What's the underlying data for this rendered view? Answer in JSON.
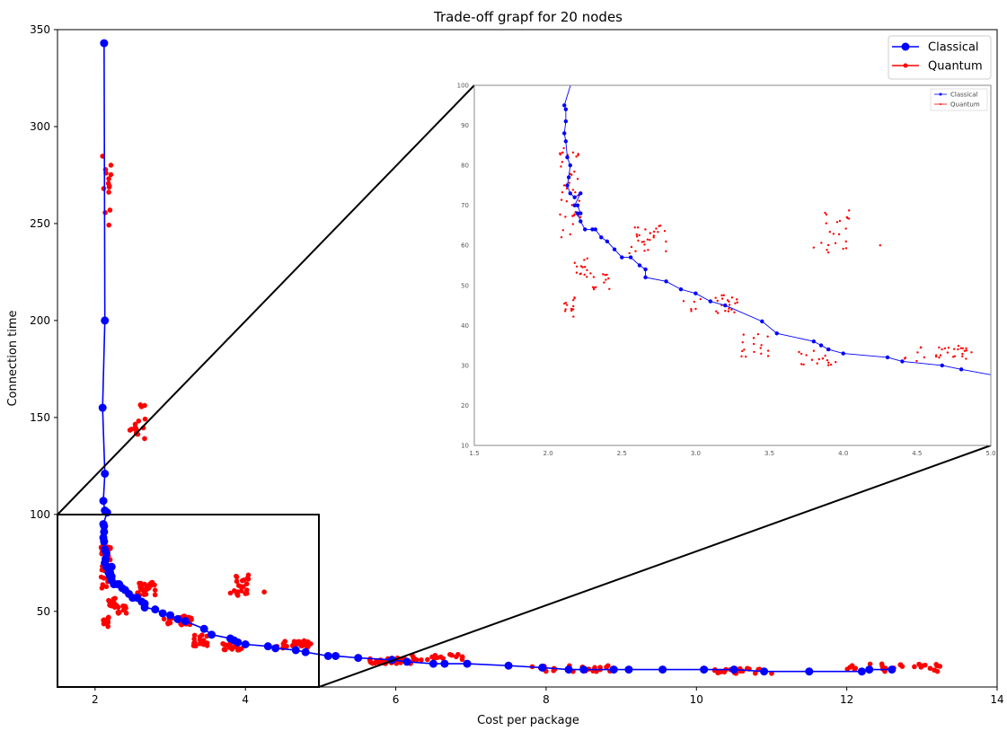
{
  "chart_data": {
    "type": "scatter",
    "title": "Trade-off grapf for 20 nodes",
    "xlabel": "Cost per package",
    "ylabel": "Connection time",
    "xlim": [
      1.5,
      14
    ],
    "ylim": [
      11,
      350
    ],
    "xticks": [
      2,
      4,
      6,
      8,
      10,
      12,
      14
    ],
    "yticks": [
      50,
      100,
      150,
      200,
      250,
      300,
      350
    ],
    "legend_position": "top-right",
    "colors": {
      "classical": "#0000ff",
      "quantum": "#ff0000",
      "zoom_box": "#000000"
    },
    "series": [
      {
        "name": "Classical",
        "style": "line-with-markers",
        "points": [
          [
            2.12,
            343
          ],
          [
            2.13,
            200
          ],
          [
            2.1,
            155
          ],
          [
            2.13,
            121
          ],
          [
            2.11,
            107
          ],
          [
            2.13,
            102
          ],
          [
            2.16,
            101
          ],
          [
            2.11,
            95
          ],
          [
            2.12,
            94
          ],
          [
            2.12,
            91
          ],
          [
            2.11,
            88
          ],
          [
            2.12,
            86
          ],
          [
            2.13,
            82
          ],
          [
            2.15,
            80
          ],
          [
            2.14,
            77
          ],
          [
            2.13,
            75
          ],
          [
            2.15,
            73
          ],
          [
            2.18,
            72
          ],
          [
            2.22,
            73
          ],
          [
            2.18,
            70
          ],
          [
            2.2,
            70
          ],
          [
            2.22,
            68
          ],
          [
            2.2,
            68
          ],
          [
            2.22,
            66
          ],
          [
            2.25,
            64
          ],
          [
            2.3,
            64
          ],
          [
            2.32,
            64
          ],
          [
            2.36,
            62
          ],
          [
            2.4,
            61
          ],
          [
            2.45,
            59
          ],
          [
            2.5,
            57
          ],
          [
            2.56,
            57
          ],
          [
            2.62,
            55
          ],
          [
            2.66,
            54
          ],
          [
            2.66,
            52
          ],
          [
            2.8,
            51
          ],
          [
            2.9,
            49
          ],
          [
            3.0,
            48
          ],
          [
            3.1,
            46
          ],
          [
            3.2,
            45
          ],
          [
            3.45,
            41
          ],
          [
            3.55,
            38
          ],
          [
            3.8,
            36
          ],
          [
            3.85,
            35
          ],
          [
            3.9,
            34
          ],
          [
            4.0,
            33
          ],
          [
            4.3,
            32
          ],
          [
            4.4,
            31
          ],
          [
            4.67,
            30
          ],
          [
            4.8,
            29
          ],
          [
            5.1,
            27
          ],
          [
            5.2,
            27
          ],
          [
            5.5,
            26
          ],
          [
            5.95,
            25
          ],
          [
            6.15,
            24
          ],
          [
            6.5,
            23
          ],
          [
            6.65,
            23
          ],
          [
            6.95,
            23
          ],
          [
            7.5,
            22
          ],
          [
            7.95,
            21
          ],
          [
            8.3,
            20
          ],
          [
            8.5,
            20
          ],
          [
            8.9,
            20
          ],
          [
            9.1,
            20
          ],
          [
            9.55,
            20
          ],
          [
            10.1,
            20
          ],
          [
            10.5,
            20
          ],
          [
            10.9,
            19
          ],
          [
            11.5,
            19
          ],
          [
            12.2,
            19
          ],
          [
            12.3,
            20
          ],
          [
            12.6,
            20
          ]
        ]
      },
      {
        "name": "Quantum",
        "style": "markers",
        "clusters": [
          {
            "x": [
              2.1,
              2.22
            ],
            "y": [
              247,
              288
            ],
            "n": 14
          },
          {
            "x": [
              2.45,
              2.68
            ],
            "y": [
              138,
              158
            ],
            "n": 16
          },
          {
            "x": [
              2.08,
              2.22
            ],
            "y": [
              62,
              85
            ],
            "n": 40
          },
          {
            "x": [
              2.1,
              2.18
            ],
            "y": [
              42,
              47
            ],
            "n": 14
          },
          {
            "x": [
              2.15,
              2.3
            ],
            "y": [
              52,
              57
            ],
            "n": 14
          },
          {
            "x": [
              2.3,
              2.42
            ],
            "y": [
              49,
              53
            ],
            "n": 12
          },
          {
            "x": [
              2.55,
              2.8
            ],
            "y": [
              58,
              65
            ],
            "n": 28
          },
          {
            "x": [
              3.8,
              4.05
            ],
            "y": [
              58,
              69
            ],
            "n": 22
          },
          {
            "x": [
              2.9,
              3.3
            ],
            "y": [
              43,
              48
            ],
            "n": 26
          },
          {
            "x": [
              3.3,
              3.5
            ],
            "y": [
              32,
              38
            ],
            "n": 16
          },
          {
            "x": [
              3.7,
              3.95
            ],
            "y": [
              30,
              34
            ],
            "n": 18
          },
          {
            "x": [
              4.4,
              4.9
            ],
            "y": [
              31,
              35
            ],
            "n": 30
          },
          {
            "x": [
              5.6,
              6.2
            ],
            "y": [
              23,
              26
            ],
            "n": 40
          },
          {
            "x": [
              6.2,
              6.9
            ],
            "y": [
              24,
              28
            ],
            "n": 22
          },
          {
            "x": [
              7.8,
              8.9
            ],
            "y": [
              19,
              22
            ],
            "n": 30
          },
          {
            "x": [
              10.2,
              10.9
            ],
            "y": [
              18,
              21
            ],
            "n": 20
          },
          {
            "x": [
              12.0,
              13.3
            ],
            "y": [
              19,
              23
            ],
            "n": 26
          }
        ],
        "points": [
          [
            4.25,
            60
          ],
          [
            11.0,
            18
          ]
        ]
      }
    ],
    "inset": {
      "xlim": [
        1.5,
        5.0
      ],
      "ylim": [
        10,
        100
      ],
      "xticks": [
        "1.5",
        "2.0",
        "2.5",
        "3.0",
        "3.5",
        "4.0",
        "4.5",
        "5.0"
      ],
      "yticks": [
        "10",
        "20",
        "30",
        "40",
        "50",
        "60",
        "70",
        "80",
        "90",
        "100"
      ],
      "legend": [
        "Classical",
        "Quantum"
      ]
    }
  }
}
